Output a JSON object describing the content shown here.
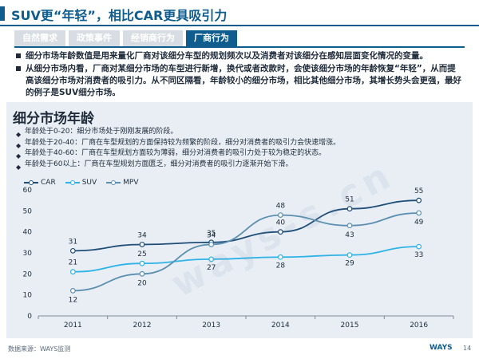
{
  "header": {
    "title": "SUV更“年轻”，相比CAR更具吸引力"
  },
  "tabs": [
    {
      "label": "自然需求",
      "active": false
    },
    {
      "label": "政策事件",
      "active": false
    },
    {
      "label": "经销商行为",
      "active": false
    },
    {
      "label": "厂商行为",
      "active": true
    }
  ],
  "intro_bullets": [
    "细分市场年龄数值是用来量化厂商对该细分车型的规划频次以及消费者对该细分在感知层面变化情况的变量。",
    "从细分市场内看，厂商对某细分市场的车型进行新增，换代或者改款时，会使该细分市场的年龄恢复“年轻”，从而提高该细分市场对消费者的吸引力。从不同区隔看，年龄较小的细分市场，相比其他细分市场，其增长势头会更强，最好的例子是SUV细分市场。"
  ],
  "panel": {
    "title": "细分市场年龄",
    "bullets": [
      "年龄处于0-20：细分市场处于刚刚发展的阶段。",
      "年龄处于20-40：厂商在车型规划的方面保持较为频繁的阶段，细分对消费者的吸引力会快速增涨。",
      "年龄处于40-60：厂商在车型规划方面较为薄弱，细分对消费者的吸引力处于较为稳定的状态。",
      "年龄处于60以上：厂商在车型规划方面匮乏，细分对消费者的吸引力逐渐开始下滑。"
    ]
  },
  "chart_data": {
    "type": "line",
    "x": [
      "2011",
      "2012",
      "2013",
      "2014",
      "2015",
      "2016"
    ],
    "ylim": [
      0,
      60
    ],
    "yticks": [
      0,
      10,
      20,
      30,
      40,
      50,
      60
    ],
    "grid": false,
    "legend": "top-left",
    "series": [
      {
        "name": "CAR",
        "color": "#1f4e79",
        "values": [
          31,
          34,
          35,
          40,
          51,
          55
        ]
      },
      {
        "name": "SUV",
        "color": "#2eb3e6",
        "values": [
          21,
          25,
          27,
          28,
          29,
          33
        ]
      },
      {
        "name": "MPV",
        "color": "#5b8fb0",
        "values": [
          12,
          20,
          34,
          48,
          43,
          49
        ]
      }
    ]
  },
  "footer": {
    "source": "数据来源：WAYS监测",
    "logo": "WAYS",
    "page": "14"
  },
  "watermark": "ways-s.cn"
}
